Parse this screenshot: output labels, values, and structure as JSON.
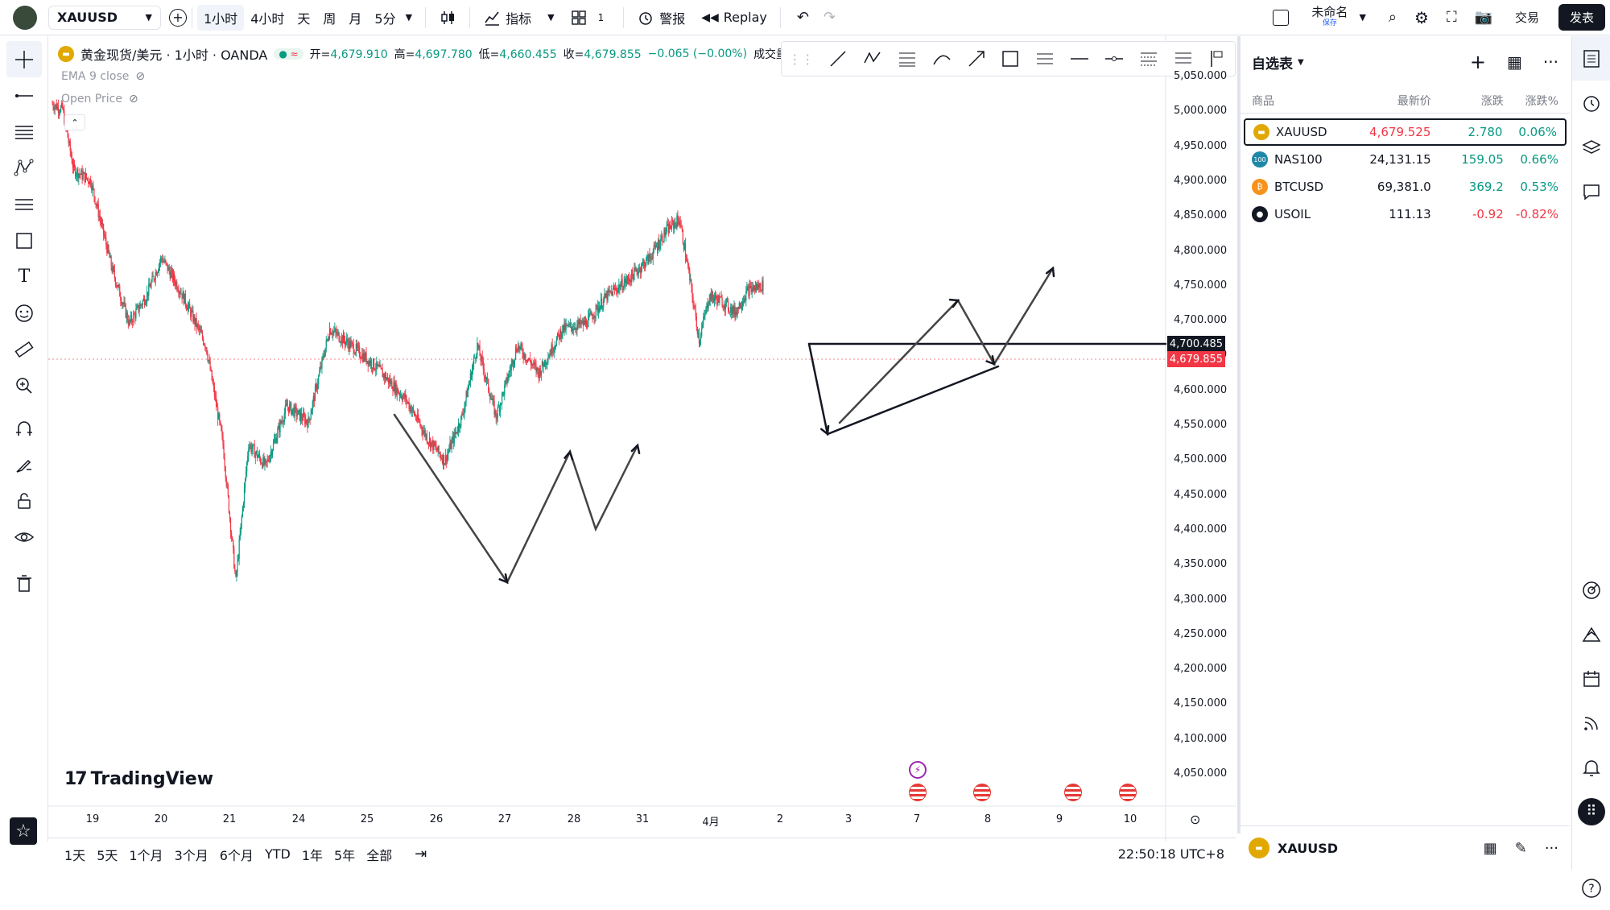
{
  "topbar": {
    "symbol": "XAUUSD",
    "intervals": [
      "1小时",
      "4小时",
      "天",
      "周",
      "月",
      "5分"
    ],
    "indicators_label": "指标",
    "layouts_count": "1",
    "alert_label": "警报",
    "replay_label": "Replay",
    "layout_name": "未命名",
    "layout_status": "保存",
    "trade_label": "交易",
    "publish_label": "发表"
  },
  "legend": {
    "title": "黄金现货/美元 · 1小时 · OANDA",
    "open_label": "开=",
    "open": "4,679.910",
    "high_label": "高=",
    "high": "4,697.780",
    "low_label": "低=",
    "low": "4,660.455",
    "close_label": "收=",
    "close": "4,679.855",
    "change": "−0.065 (−0.00%)",
    "volume_label": "成交量",
    "ema": "EMA 9 close",
    "open_price": "Open Price"
  },
  "price_axis": [
    "5,050.000",
    "5,000.000",
    "4,950.000",
    "4,900.000",
    "4,850.000",
    "4,800.000",
    "4,750.000",
    "4,700.000",
    "4,650.000",
    "4,600.000",
    "4,550.000",
    "4,500.000",
    "4,450.000",
    "4,400.000",
    "4,350.000",
    "4,300.000",
    "4,250.000",
    "4,200.000",
    "4,150.000",
    "4,100.000",
    "4,050.000"
  ],
  "level_tag": "4,700.485",
  "price_tag": "4,679.855",
  "time_axis": [
    "19",
    "20",
    "21",
    "24",
    "25",
    "26",
    "27",
    "28",
    "31",
    "4月",
    "2",
    "3",
    "7",
    "8",
    "9",
    "10"
  ],
  "brand": "TradingView",
  "ranges": [
    "1天",
    "5天",
    "1个月",
    "3个月",
    "6个月",
    "YTD",
    "1年",
    "5年",
    "全部"
  ],
  "clock": "22:50:18 UTC+8",
  "watchlist": {
    "title": "自选表",
    "cols": [
      "商品",
      "最新价",
      "涨跌",
      "涨跌%"
    ],
    "rows": [
      {
        "sym": "XAUUSD",
        "last": "4,679.525",
        "chg": "2.780",
        "pct": "0.06%",
        "up": true,
        "color": "#e0a800"
      },
      {
        "sym": "NAS100",
        "last": "24,131.15",
        "chg": "159.05",
        "pct": "0.66%",
        "up": true,
        "color": "#1e88a8"
      },
      {
        "sym": "BTCUSD",
        "last": "69,381.0",
        "chg": "369.2",
        "pct": "0.53%",
        "up": true,
        "color": "#f7931a"
      },
      {
        "sym": "USOIL",
        "last": "111.13",
        "chg": "-0.92",
        "pct": "-0.82%",
        "up": false,
        "color": "#131722"
      }
    ],
    "footer_symbol": "XAUUSD"
  },
  "colors": {
    "up": "#089981",
    "down": "#f23645",
    "accent": "#2962ff"
  }
}
